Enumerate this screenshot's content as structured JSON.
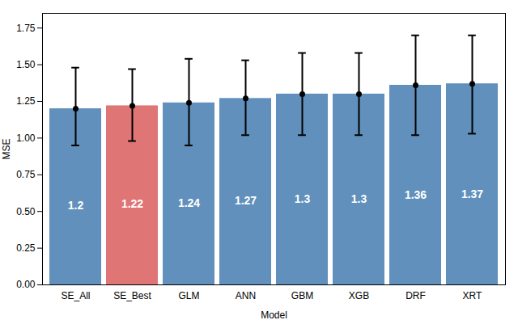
{
  "chart_data": {
    "type": "bar",
    "categories": [
      "SE_All",
      "SE_Best",
      "GLM",
      "ANN",
      "GBM",
      "XGB",
      "DRF",
      "XRT"
    ],
    "values": [
      1.2,
      1.22,
      1.24,
      1.27,
      1.3,
      1.3,
      1.36,
      1.37
    ],
    "colors": [
      "#6090bb",
      "#e07575",
      "#6090bb",
      "#6090bb",
      "#6090bb",
      "#6090bb",
      "#6090bb",
      "#6090bb"
    ],
    "error_lower": [
      0.25,
      0.24,
      0.29,
      0.25,
      0.28,
      0.28,
      0.34,
      0.34
    ],
    "error_upper": [
      0.28,
      0.25,
      0.3,
      0.26,
      0.28,
      0.28,
      0.34,
      0.33
    ],
    "xlabel": "Model",
    "ylabel": "MSE",
    "ylim": [
      0.0,
      1.85
    ],
    "yticks": [
      {
        "value": 0.0,
        "label": "0.00"
      },
      {
        "value": 0.25,
        "label": "0.25"
      },
      {
        "value": 0.5,
        "label": "0.50"
      },
      {
        "value": 0.75,
        "label": "0.75"
      },
      {
        "value": 1.0,
        "label": "1.00"
      },
      {
        "value": 1.25,
        "label": "1.25"
      },
      {
        "value": 1.5,
        "label": "1.50"
      },
      {
        "value": 1.75,
        "label": "1.75"
      }
    ],
    "data_labels": true,
    "grid": false
  }
}
